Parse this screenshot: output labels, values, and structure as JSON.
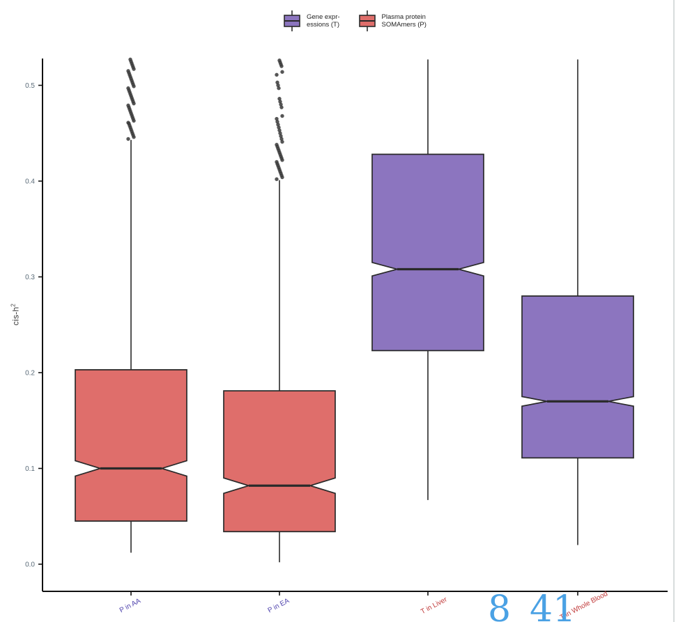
{
  "figure": {
    "ylabel_base": "cis-h",
    "ylabel_exponent": "2"
  },
  "overlay": {
    "number_left": "8",
    "number_right": "41"
  },
  "colors": {
    "axis": "#111111",
    "tick_label": "#5a6b78",
    "box_stroke": "#2a2a2a",
    "outlier": "#383838",
    "watermark_blue": "#4aa1e4",
    "legend_text": "#1f1f1f",
    "p_label": "#4e42ad",
    "t_label": "#c13a3a",
    "red_fill": "#df6e6b",
    "purple_fill": "#8c75bf"
  },
  "chart_data": {
    "type": "boxplot",
    "notched": true,
    "title": "",
    "xlabel": "",
    "ylabel": "cis-h^2",
    "ylim": [
      0,
      0.53
    ],
    "yticks": [
      0.0,
      0.1,
      0.2,
      0.3,
      0.4,
      0.5
    ],
    "ytick_labels": [
      "0.0",
      "0.1",
      "0.2",
      "0.3",
      "0.4",
      "0.5"
    ],
    "grid": false,
    "legend_position": "top-center",
    "legend": [
      {
        "label": "Gene expr-\nessions (T)",
        "group": "T",
        "color": "#8c75bf"
      },
      {
        "label": "Plasma protein\nSOMAmers (P)",
        "group": "P",
        "color": "#df6e6b"
      }
    ],
    "categories": [
      "P in AA",
      "P in EA",
      "T in Liver",
      "T in Whole Blood"
    ],
    "series": [
      {
        "name": "P in AA",
        "group": "Plasma protein SOMAmers (P)",
        "fill": "#df6e6b",
        "label_color": "#4e42ad",
        "whisker_low": 0.012,
        "q1": 0.045,
        "median": 0.1,
        "q3": 0.203,
        "whisker_high": 0.443,
        "notch_low": 0.092,
        "notch_high": 0.108,
        "outliers": [
          0.444,
          0.446,
          0.448,
          0.45,
          0.452,
          0.454,
          0.456,
          0.458,
          0.46,
          0.461,
          0.463,
          0.465,
          0.467,
          0.469,
          0.471,
          0.473,
          0.475,
          0.477,
          0.479,
          0.481,
          0.483,
          0.485,
          0.487,
          0.489,
          0.491,
          0.493,
          0.495,
          0.497,
          0.499,
          0.501,
          0.503,
          0.505,
          0.507,
          0.509,
          0.511,
          0.513,
          0.515,
          0.517,
          0.519,
          0.521,
          0.523,
          0.525,
          0.527
        ]
      },
      {
        "name": "P in EA",
        "group": "Plasma protein SOMAmers (P)",
        "fill": "#df6e6b",
        "label_color": "#4e42ad",
        "whisker_low": 0.002,
        "q1": 0.034,
        "median": 0.082,
        "q3": 0.181,
        "whisker_high": 0.401,
        "notch_low": 0.074,
        "notch_high": 0.09,
        "outliers": [
          0.402,
          0.404,
          0.406,
          0.408,
          0.41,
          0.412,
          0.414,
          0.416,
          0.418,
          0.42,
          0.422,
          0.424,
          0.426,
          0.428,
          0.43,
          0.432,
          0.434,
          0.436,
          0.438,
          0.441,
          0.444,
          0.447,
          0.45,
          0.453,
          0.456,
          0.459,
          0.462,
          0.465,
          0.468,
          0.477,
          0.48,
          0.483,
          0.486,
          0.497,
          0.5,
          0.503,
          0.511,
          0.514,
          0.52,
          0.522,
          0.524,
          0.526
        ]
      },
      {
        "name": "T in Liver",
        "group": "Gene expressions (T)",
        "fill": "#8c75bf",
        "label_color": "#c13a3a",
        "whisker_low": 0.067,
        "q1": 0.223,
        "median": 0.308,
        "q3": 0.428,
        "whisker_high": 0.527,
        "notch_low": 0.301,
        "notch_high": 0.315,
        "outliers": []
      },
      {
        "name": "T in Whole Blood",
        "group": "Gene expressions (T)",
        "fill": "#8c75bf",
        "label_color": "#c13a3a",
        "whisker_low": 0.02,
        "q1": 0.111,
        "median": 0.17,
        "q3": 0.28,
        "whisker_high": 0.527,
        "notch_low": 0.165,
        "notch_high": 0.175,
        "outliers": []
      }
    ]
  }
}
